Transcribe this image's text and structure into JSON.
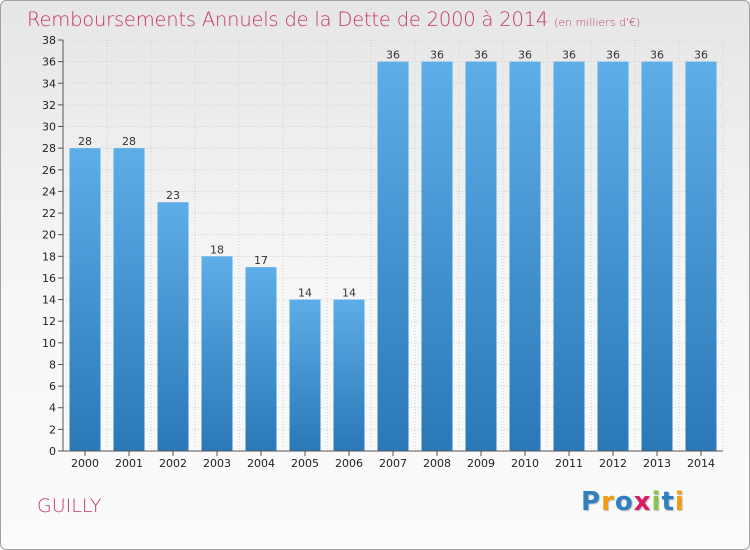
{
  "header": {
    "title": "Remboursements Annuels de la Dette de 2000 à 2014",
    "unit": "(en milliers d'€)"
  },
  "footer": {
    "commune": "GUILLY",
    "logo": "Proxiti"
  },
  "logo_letters": [
    {
      "ch": "P",
      "color": "#2f7fc1"
    },
    {
      "ch": "r",
      "color": "#f39c12"
    },
    {
      "ch": "o",
      "color": "#2f7fc1"
    },
    {
      "ch": "x",
      "color": "#d81b60"
    },
    {
      "ch": "i",
      "color": "#8bc34a"
    },
    {
      "ch": "t",
      "color": "#2f7fc1"
    },
    {
      "ch": "i",
      "color": "#f39c12"
    }
  ],
  "colors": {
    "bar_top": "#5dade8",
    "bar_bottom": "#2a78b8",
    "title": "#c4336b",
    "grid": "#d0d0d0"
  },
  "chart_data": {
    "type": "bar",
    "categories": [
      "2000",
      "2001",
      "2002",
      "2003",
      "2004",
      "2005",
      "2006",
      "2007",
      "2008",
      "2009",
      "2010",
      "2011",
      "2012",
      "2013",
      "2014"
    ],
    "values": [
      28,
      28,
      23,
      18,
      17,
      14,
      14,
      36,
      36,
      36,
      36,
      36,
      36,
      36,
      36
    ],
    "title": "Remboursements Annuels de la Dette de 2000 à 2014",
    "xlabel": "",
    "ylabel": "",
    "ylim": [
      0,
      38
    ],
    "yticks": [
      0,
      2,
      4,
      6,
      8,
      10,
      12,
      14,
      16,
      18,
      20,
      22,
      24,
      26,
      28,
      30,
      32,
      34,
      36,
      38
    ],
    "grid": true,
    "legend": "none"
  }
}
